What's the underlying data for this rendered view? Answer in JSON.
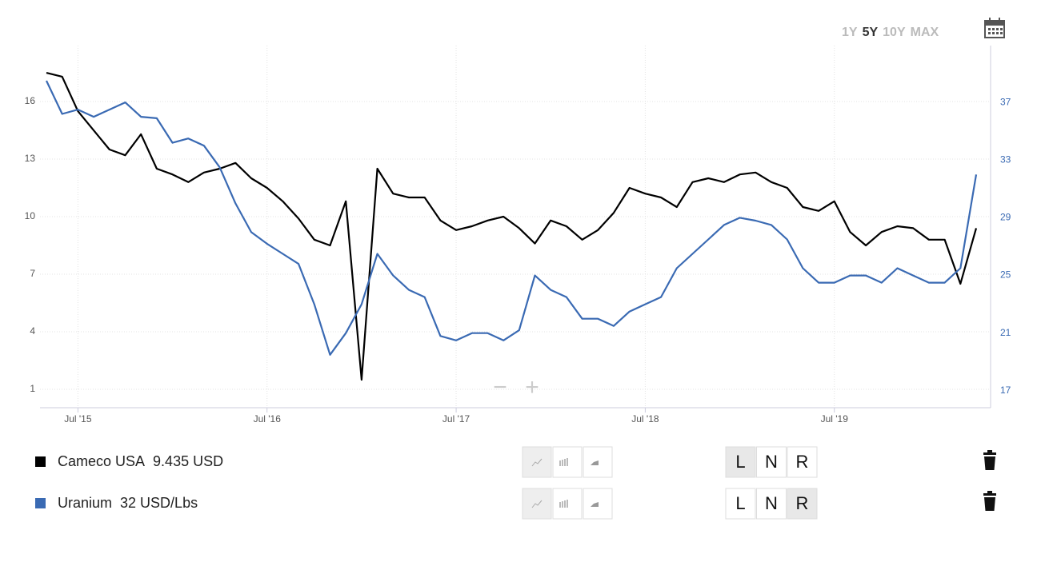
{
  "chart_data": {
    "type": "line",
    "x": [
      "2015-05",
      "2015-06",
      "2015-07",
      "2015-08",
      "2015-09",
      "2015-10",
      "2015-11",
      "2015-12",
      "2016-01",
      "2016-02",
      "2016-03",
      "2016-04",
      "2016-05",
      "2016-06",
      "2016-07",
      "2016-08",
      "2016-09",
      "2016-10",
      "2016-11",
      "2016-12",
      "2017-01",
      "2017-02",
      "2017-03",
      "2017-04",
      "2017-05",
      "2017-06",
      "2017-07",
      "2017-08",
      "2017-09",
      "2017-10",
      "2017-11",
      "2017-12",
      "2018-01",
      "2018-02",
      "2018-03",
      "2018-04",
      "2018-05",
      "2018-06",
      "2018-07",
      "2018-08",
      "2018-09",
      "2018-10",
      "2018-11",
      "2018-12",
      "2019-01",
      "2019-02",
      "2019-03",
      "2019-04",
      "2019-05",
      "2019-06",
      "2019-07",
      "2019-08",
      "2019-09",
      "2019-10",
      "2019-11",
      "2019-12",
      "2020-01",
      "2020-02",
      "2020-03",
      "2020-04"
    ],
    "series": [
      {
        "name": "Cameco USA",
        "value_label": "9.435 USD",
        "color": "#000000",
        "values": [
          17.5,
          17.3,
          15.5,
          14.5,
          13.5,
          13.2,
          14.3,
          12.5,
          12.2,
          11.8,
          12.3,
          12.5,
          12.8,
          12.0,
          11.5,
          10.8,
          9.9,
          8.8,
          8.5,
          10.8,
          1.5,
          12.5,
          11.2,
          11.0,
          11.0,
          9.8,
          9.3,
          9.5,
          9.8,
          10.0,
          9.4,
          8.6,
          9.8,
          9.5,
          8.8,
          9.3,
          10.2,
          11.5,
          11.2,
          11.0,
          10.5,
          11.8,
          12.0,
          11.8,
          12.2,
          12.3,
          11.8,
          11.5,
          10.5,
          10.3,
          10.8,
          9.2,
          8.5,
          9.2,
          9.5,
          9.4,
          8.8,
          8.8,
          6.5,
          9.4
        ]
      },
      {
        "name": "Uranium",
        "value_label": "32 USD/Lbs",
        "color": "#3a6ab3",
        "axis": "y2",
        "values": [
          38.5,
          36.2,
          36.5,
          36.0,
          36.5,
          37.0,
          36.0,
          35.9,
          34.2,
          34.5,
          34.0,
          32.5,
          30.0,
          28.0,
          27.2,
          26.5,
          25.8,
          23.0,
          19.5,
          21.0,
          23.0,
          26.5,
          25.0,
          24.0,
          23.5,
          20.8,
          20.5,
          21.0,
          21.0,
          20.5,
          21.2,
          25.0,
          24.0,
          23.5,
          22.0,
          22.0,
          21.5,
          22.5,
          23.0,
          23.5,
          25.5,
          26.5,
          27.5,
          28.5,
          29.0,
          28.8,
          28.5,
          27.5,
          25.5,
          24.5,
          24.5,
          25.0,
          25.0,
          24.5,
          25.5,
          25.0,
          24.5,
          24.5,
          25.5,
          32.0
        ]
      }
    ],
    "xlim": [
      "2015-05",
      "2020-04"
    ],
    "xticks": [
      {
        "value": "2015-07",
        "label": "Jul '15"
      },
      {
        "value": "2016-07",
        "label": "Jul '16"
      },
      {
        "value": "2017-07",
        "label": "Jul '17"
      },
      {
        "value": "2018-07",
        "label": "Jul '18"
      },
      {
        "value": "2019-07",
        "label": "Jul '19"
      }
    ],
    "ylim": [
      0.04,
      18.92
    ],
    "yticks": [
      1,
      4,
      7,
      10,
      13,
      16
    ],
    "y2lim": [
      15.83,
      40.94
    ],
    "y2ticks": [
      17,
      21,
      25,
      29,
      33,
      37
    ],
    "grid": true
  },
  "range_buttons": [
    "1Y",
    "5Y",
    "10Y",
    "MAX"
  ],
  "active_range": 1,
  "zoom_controls": [
    "−",
    "+"
  ],
  "axis_buttons": [
    "L",
    "N",
    "R"
  ]
}
